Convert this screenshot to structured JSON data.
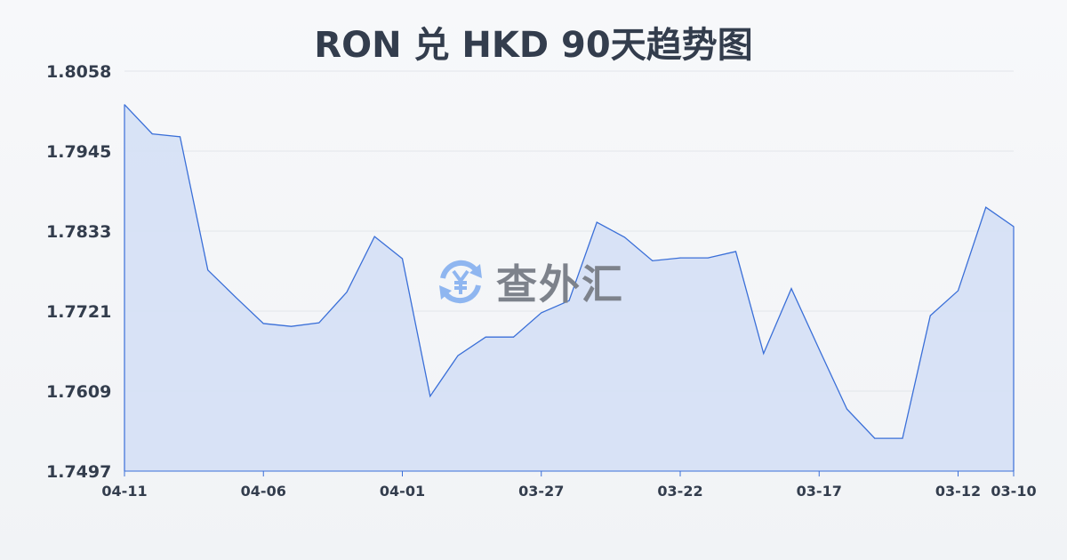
{
  "chart_data": {
    "type": "area",
    "title": "RON 兑 HKD 90天趋势图",
    "xlabel": "",
    "ylabel": "",
    "x": [
      "04-11",
      "04-10",
      "04-09",
      "04-08",
      "04-07",
      "04-06",
      "04-05",
      "04-04",
      "04-03",
      "04-02",
      "04-01",
      "03-31",
      "03-30",
      "03-29",
      "03-28",
      "03-27",
      "03-26",
      "03-25",
      "03-24",
      "03-23",
      "03-22",
      "03-21",
      "03-20",
      "03-19",
      "03-18",
      "03-17",
      "03-16",
      "03-15",
      "03-14",
      "03-13",
      "03-12",
      "03-11",
      "03-10"
    ],
    "values": [
      1.8011,
      1.797,
      1.7966,
      1.7779,
      1.7741,
      1.7704,
      1.77,
      1.7705,
      1.7748,
      1.7826,
      1.7795,
      1.7602,
      1.7659,
      1.7685,
      1.7685,
      1.7719,
      1.7736,
      1.7846,
      1.7825,
      1.7792,
      1.7796,
      1.7796,
      1.7805,
      1.7662,
      1.7753,
      1.7668,
      1.7584,
      1.7543,
      1.7543,
      1.7715,
      1.775,
      1.7867,
      1.784
    ],
    "xtick_labels": [
      "04-11",
      "04-06",
      "04-01",
      "03-27",
      "03-22",
      "03-17",
      "03-12",
      "03-10"
    ],
    "ytick_labels": [
      "1.8058",
      "1.7945",
      "1.7833",
      "1.7721",
      "1.7609",
      "1.7497"
    ],
    "ylim": [
      1.7497,
      1.8058
    ],
    "grid": true,
    "legend": "none",
    "colors": {
      "line": "#3a6fd8",
      "fill": "#d5e0f5",
      "grid": "#e2e5ea",
      "text": "#333d4d"
    }
  },
  "watermark": {
    "text": "查外汇",
    "icon": "yen-exchange-icon",
    "color": "#8fb6f0"
  }
}
